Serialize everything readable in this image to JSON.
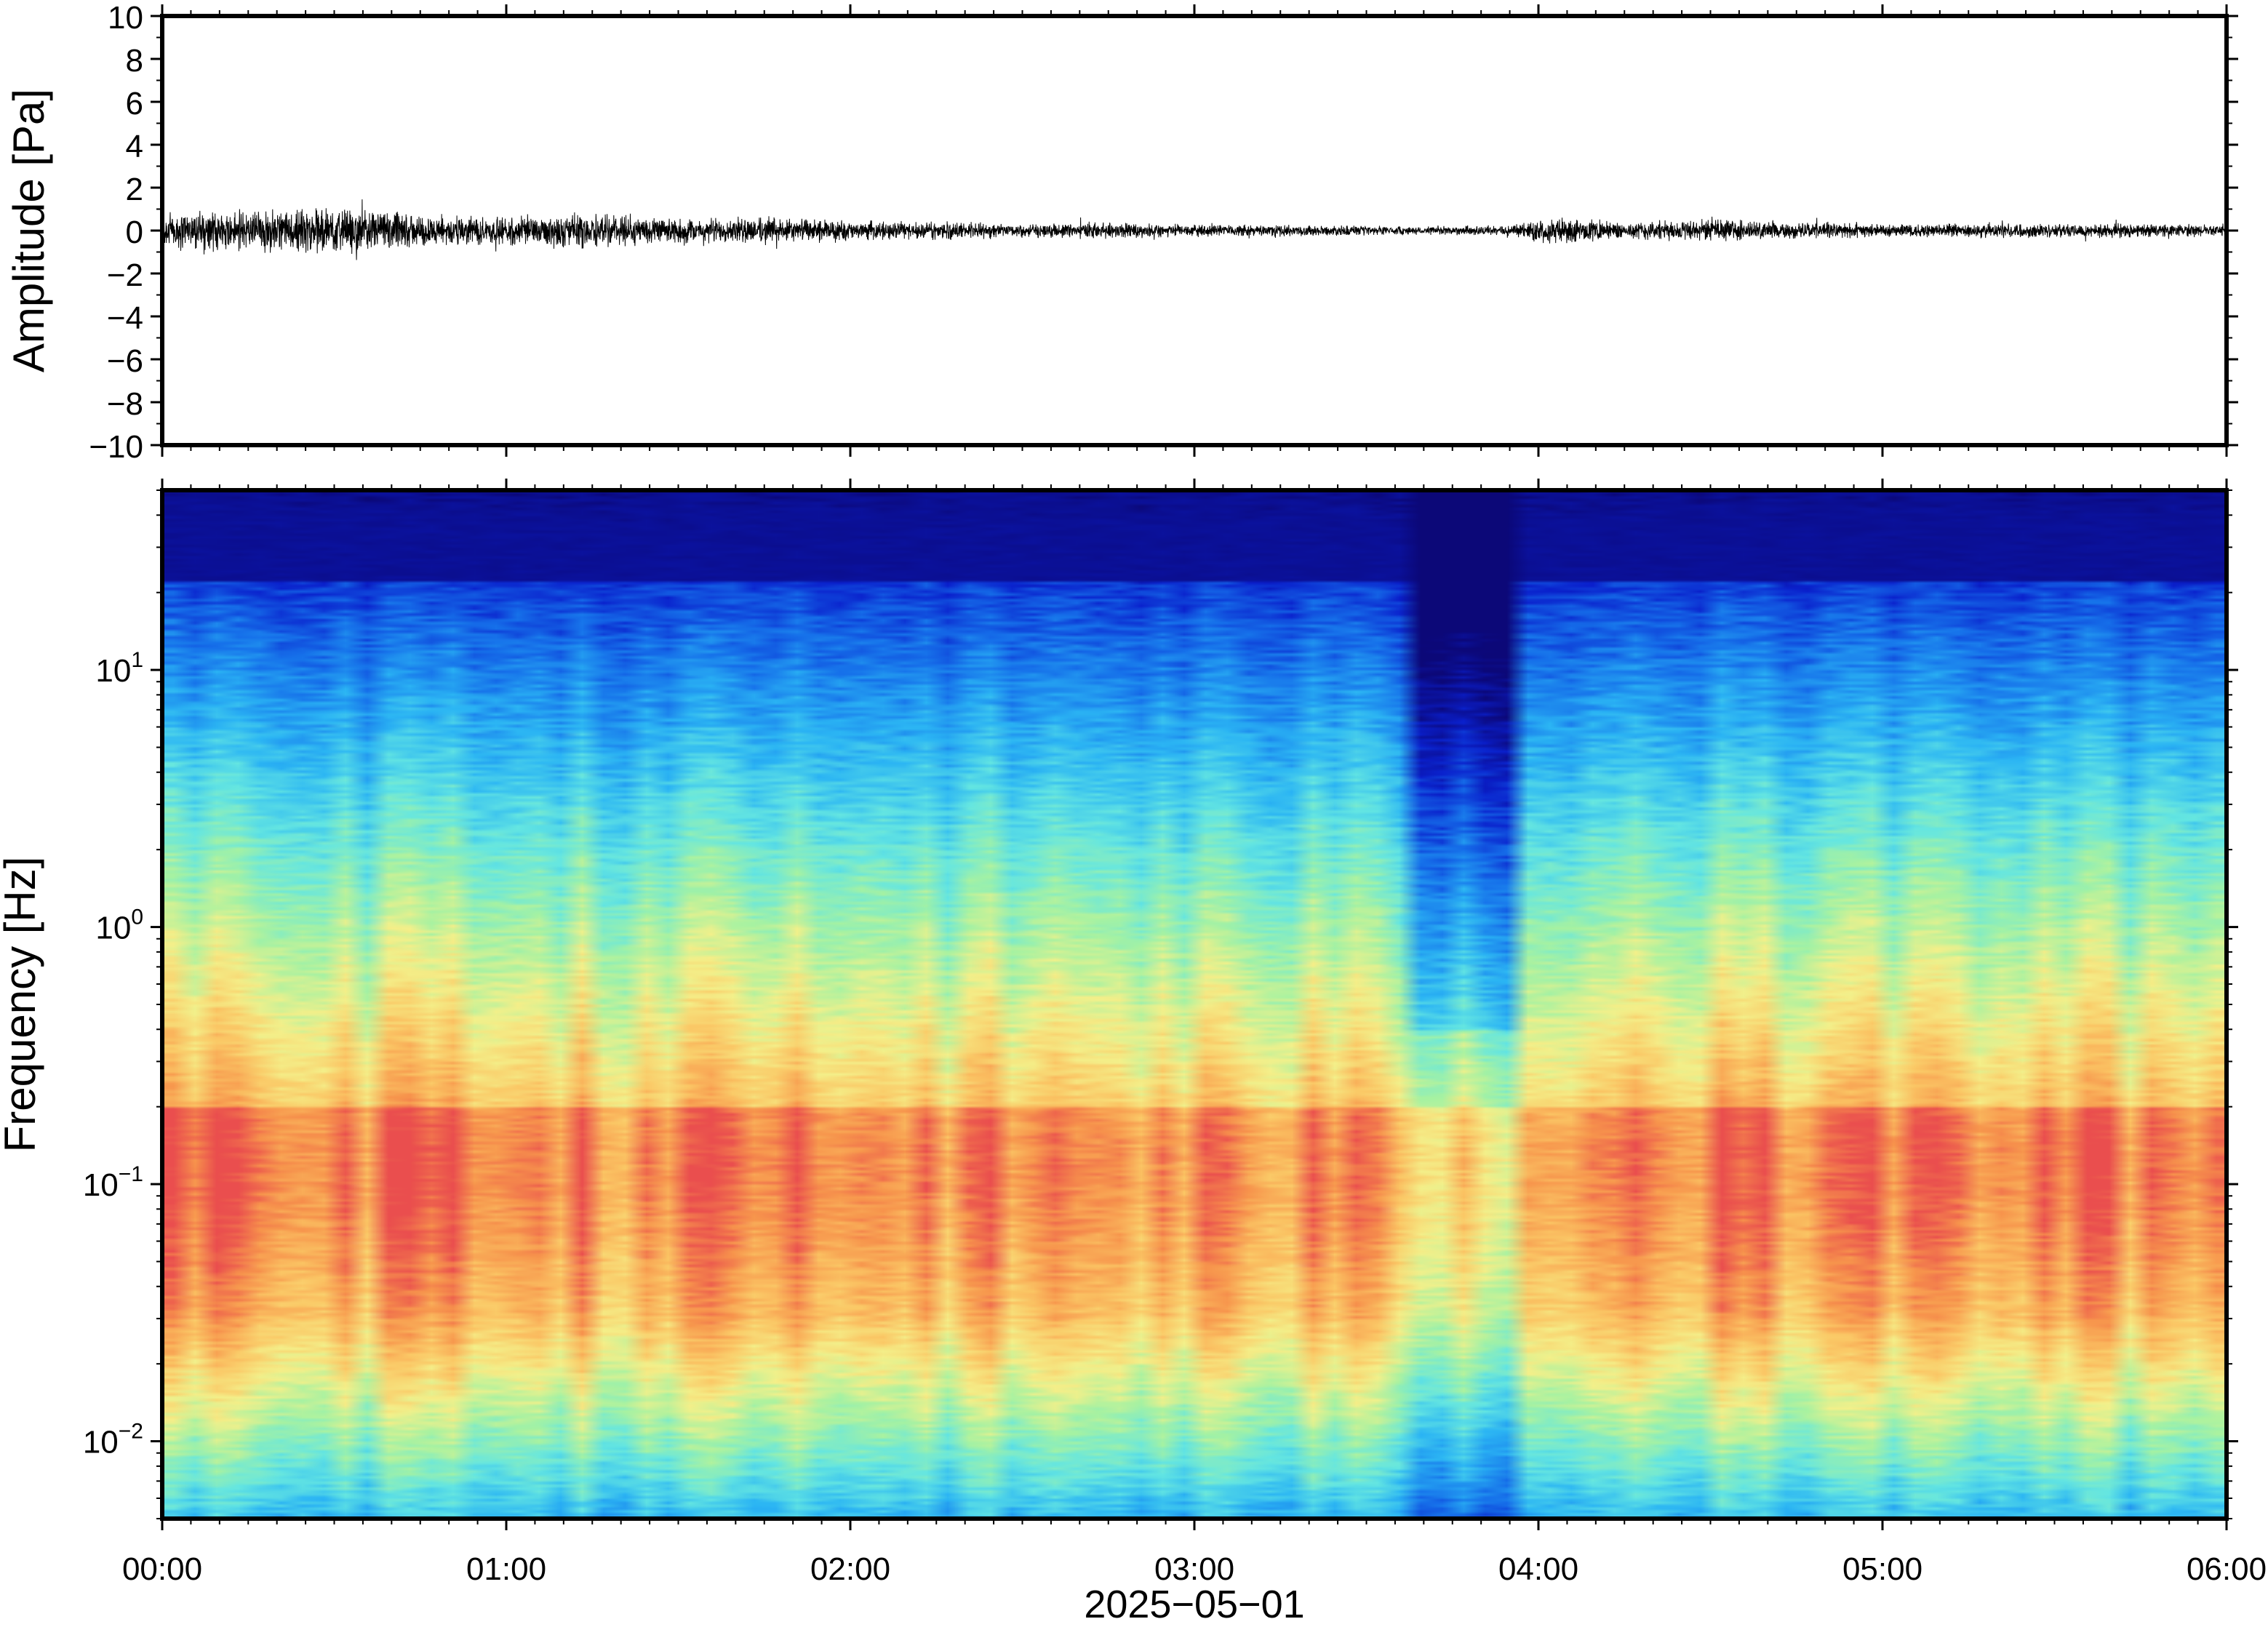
{
  "chart_data": [
    {
      "type": "line",
      "panel": "waveform",
      "ylabel": "Amplitude [Pa]",
      "ylim": [
        -10,
        10
      ],
      "y_ticks": [
        10,
        8,
        6,
        4,
        2,
        0,
        -2,
        -4,
        -6,
        -8,
        -10
      ],
      "y_tick_labels": [
        "10",
        "8",
        "6",
        "4",
        "2",
        "0",
        "−2",
        "−4",
        "−6",
        "−8",
        "−10"
      ],
      "xlim_hours": [
        0,
        6
      ],
      "series": [
        {
          "line_color": "#000000",
          "envelope_hours": [
            0,
            0.25,
            0.5,
            0.75,
            1.0,
            1.25,
            1.5,
            1.75,
            2.0,
            2.25,
            2.5,
            2.75,
            3.0,
            3.25,
            3.5,
            3.75,
            3.9,
            4.05,
            4.25,
            4.5,
            4.75,
            5.0,
            5.25,
            5.5,
            5.75,
            6.0
          ],
          "envelope_pa": [
            0.8,
            0.9,
            1.0,
            0.7,
            0.6,
            0.8,
            0.5,
            0.6,
            0.4,
            0.4,
            0.3,
            0.35,
            0.25,
            0.25,
            0.2,
            0.2,
            0.2,
            0.6,
            0.35,
            0.5,
            0.35,
            0.3,
            0.3,
            0.3,
            0.3,
            0.25
          ]
        }
      ]
    },
    {
      "type": "heatmap",
      "panel": "spectrogram",
      "ylabel": "Frequency [Hz]",
      "xlabel": "2025−05−01",
      "y_scale": "log",
      "ylim_hz": [
        0.005,
        50
      ],
      "y_ticks_hz": [
        10,
        1,
        0.1,
        0.01
      ],
      "y_tick_base": "10",
      "y_tick_exponents": [
        "1",
        "0",
        "−1",
        "−2"
      ],
      "xlim_hours": [
        0,
        6
      ],
      "x_ticks_hours": [
        0,
        1,
        2,
        3,
        4,
        5,
        6
      ],
      "x_tick_labels": [
        "00:00",
        "01:00",
        "02:00",
        "03:00",
        "04:00",
        "05:00",
        "06:00"
      ],
      "colormap": [
        "#0c0878",
        "#0a1fcc",
        "#1670ea",
        "#2bb5f4",
        "#64e6e2",
        "#a6f2a2",
        "#f4f08a",
        "#fbc765",
        "#f7944c",
        "#ea4e4e"
      ],
      "quiet_interval_hours": [
        3.6,
        3.93
      ],
      "peak_band_hz": [
        0.03,
        0.2
      ]
    }
  ]
}
